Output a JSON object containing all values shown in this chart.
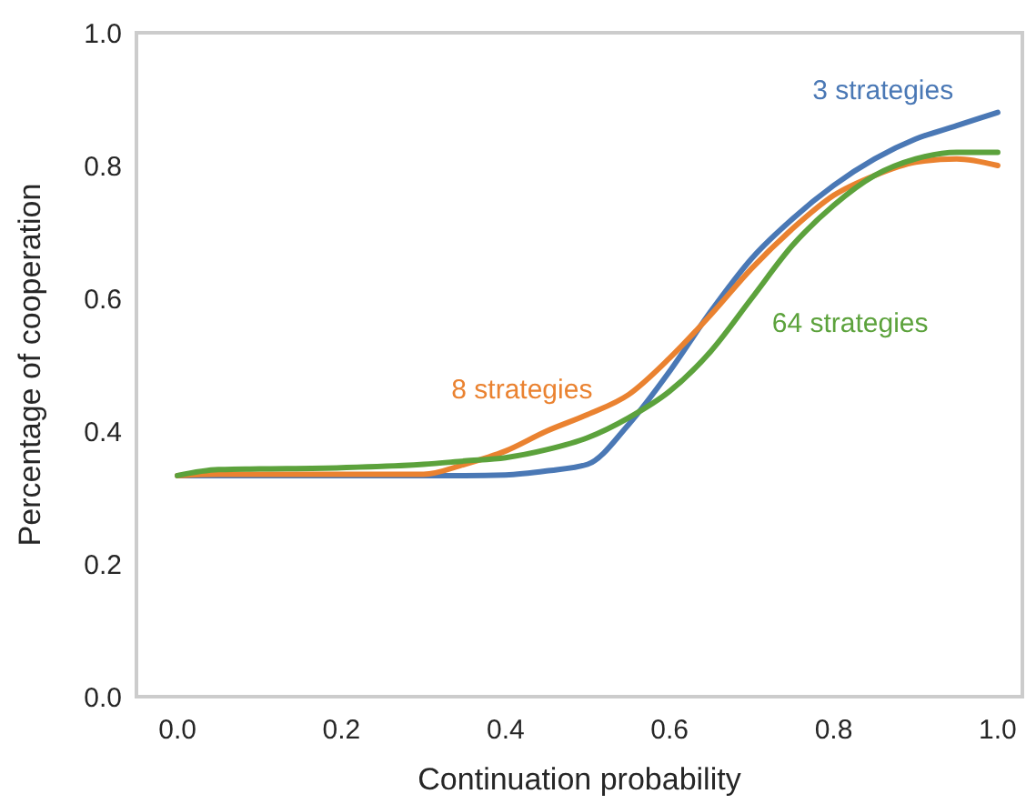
{
  "chart_data": {
    "type": "line",
    "xlabel": "Continuation probability",
    "ylabel": "Percentage of cooperation",
    "xlim": [
      -0.05,
      1.03
    ],
    "ylim": [
      0,
      1
    ],
    "xticks": [
      {
        "value": 0,
        "label": "0.0"
      },
      {
        "value": 0.2,
        "label": "0.2"
      },
      {
        "value": 0.4,
        "label": "0.4"
      },
      {
        "value": 0.6,
        "label": "0.6"
      },
      {
        "value": 0.8,
        "label": "0.8"
      },
      {
        "value": 1,
        "label": "1.0"
      }
    ],
    "yticks": [
      {
        "value": 0,
        "label": "0.0"
      },
      {
        "value": 0.2,
        "label": "0.2"
      },
      {
        "value": 0.4,
        "label": "0.4"
      },
      {
        "value": 0.6,
        "label": "0.6"
      },
      {
        "value": 0.8,
        "label": "0.8"
      },
      {
        "value": 1,
        "label": "1.0"
      }
    ],
    "grid": false,
    "legend": false,
    "marker": "none",
    "line_style": "solid",
    "x": [
      0,
      0.05,
      0.1,
      0.2,
      0.3,
      0.35,
      0.4,
      0.45,
      0.5,
      0.55,
      0.6,
      0.65,
      0.7,
      0.75,
      0.8,
      0.85,
      0.9,
      0.95,
      1.0
    ],
    "series": [
      {
        "name": "3 strategies",
        "color": "#4a78b5",
        "values": [
          0.333,
          0.333,
          0.333,
          0.333,
          0.333,
          0.333,
          0.334,
          0.34,
          0.35,
          0.41,
          0.49,
          0.58,
          0.66,
          0.72,
          0.77,
          0.81,
          0.84,
          0.86,
          0.88
        ]
      },
      {
        "name": "8 strategies",
        "color": "#ea8230",
        "values": [
          0.333,
          0.335,
          0.335,
          0.335,
          0.335,
          0.35,
          0.37,
          0.4,
          0.425,
          0.455,
          0.51,
          0.575,
          0.645,
          0.705,
          0.755,
          0.785,
          0.805,
          0.81,
          0.8
        ]
      },
      {
        "name": "64 strategies",
        "color": "#5ca23c",
        "values": [
          0.333,
          0.342,
          0.343,
          0.345,
          0.35,
          0.355,
          0.36,
          0.372,
          0.39,
          0.42,
          0.46,
          0.52,
          0.6,
          0.68,
          0.74,
          0.785,
          0.81,
          0.82,
          0.82
        ]
      }
    ]
  }
}
